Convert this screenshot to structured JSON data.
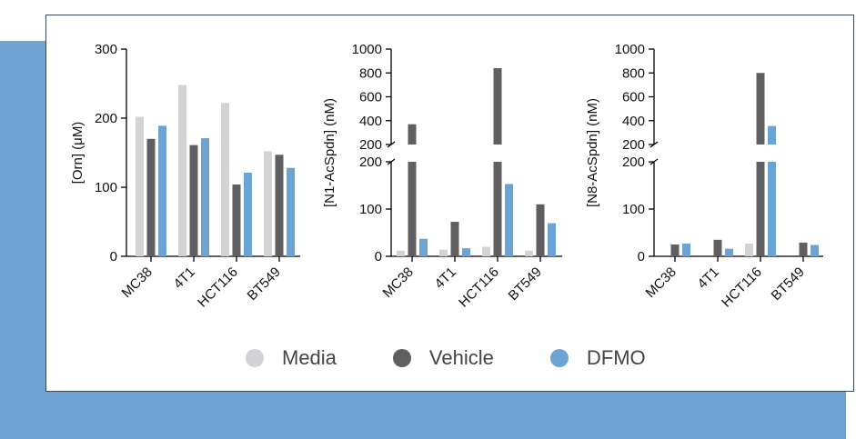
{
  "colors": {
    "background_block": "#6fa3d3",
    "axis": "#000000",
    "media": "#d3d3d6",
    "vehicle": "#5f5f61",
    "dfmo": "#6aa3d4"
  },
  "legend": [
    {
      "label": "Media",
      "color": "#d3d3d6"
    },
    {
      "label": "Vehicle",
      "color": "#5f5f61"
    },
    {
      "label": "DFMO",
      "color": "#6aa3d4"
    }
  ],
  "chart_data": [
    {
      "type": "bar",
      "ylabel": "[Orn] (μM)",
      "categories": [
        "MC38",
        "4T1",
        "HCT116",
        "BT549"
      ],
      "ylim": [
        0,
        300
      ],
      "yticks": [
        0,
        100,
        200,
        300
      ],
      "series": [
        {
          "name": "Media",
          "values": [
            202,
            248,
            222,
            152
          ]
        },
        {
          "name": "Vehicle",
          "values": [
            170,
            161,
            104,
            147
          ]
        },
        {
          "name": "DFMO",
          "values": [
            189,
            171,
            121,
            128
          ]
        }
      ]
    },
    {
      "type": "bar",
      "ylabel": "[N1-AcSpdn] (nM)",
      "categories": [
        "MC38",
        "4T1",
        "HCT116",
        "BT549"
      ],
      "axis_break": true,
      "lower_ylim": [
        0,
        200
      ],
      "lower_yticks": [
        0,
        100,
        200
      ],
      "upper_ylim": [
        200,
        1000
      ],
      "upper_yticks": [
        200,
        400,
        600,
        800,
        1000
      ],
      "series": [
        {
          "name": "Media",
          "values": [
            12,
            14,
            20,
            12
          ]
        },
        {
          "name": "Vehicle",
          "values": [
            370,
            73,
            840,
            110
          ]
        },
        {
          "name": "DFMO",
          "values": [
            37,
            17,
            153,
            70
          ]
        }
      ]
    },
    {
      "type": "bar",
      "ylabel": "[N8-AcSpdn] (nM)",
      "categories": [
        "MC38",
        "4T1",
        "HCT116",
        "BT549"
      ],
      "axis_break": true,
      "lower_ylim": [
        0,
        200
      ],
      "lower_yticks": [
        0,
        100,
        200
      ],
      "upper_ylim": [
        200,
        1000
      ],
      "upper_yticks": [
        200,
        400,
        600,
        800,
        1000
      ],
      "series": [
        {
          "name": "Media",
          "values": [
            0,
            0,
            27,
            0
          ]
        },
        {
          "name": "Vehicle",
          "values": [
            25,
            35,
            800,
            29
          ]
        },
        {
          "name": "DFMO",
          "values": [
            27,
            16,
            355,
            24
          ]
        }
      ]
    }
  ]
}
